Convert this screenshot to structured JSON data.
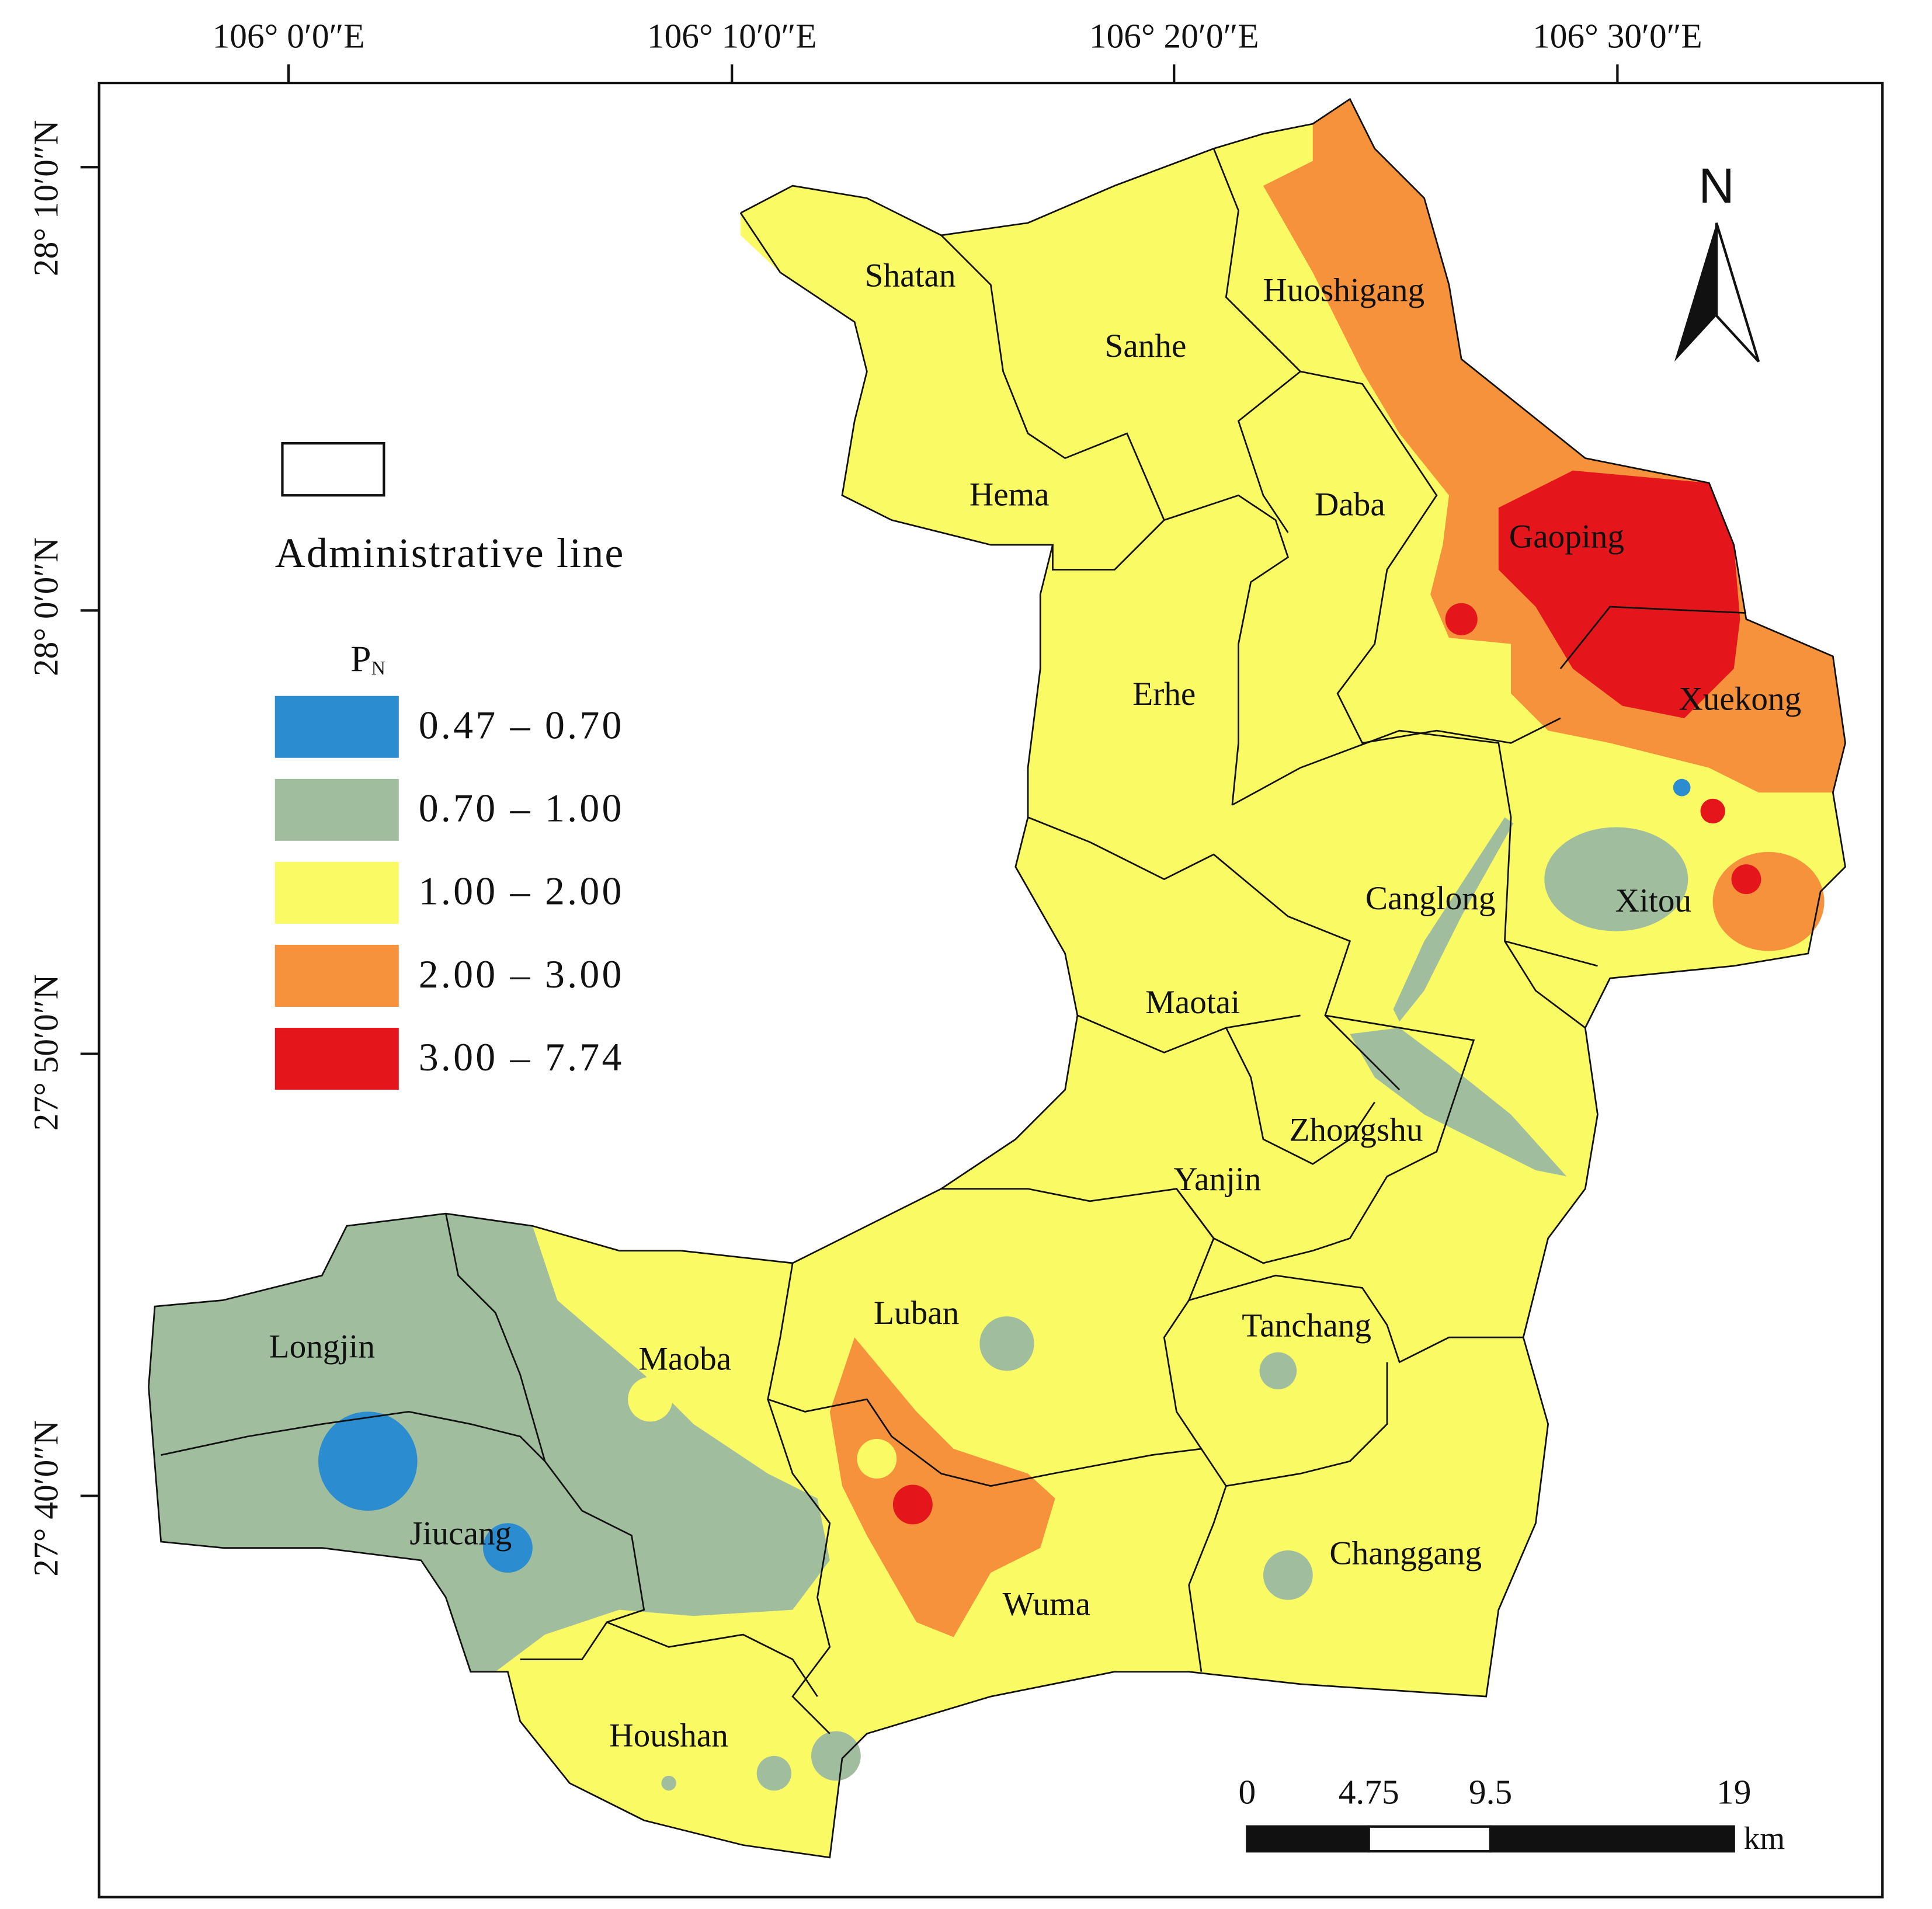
{
  "map": {
    "longitude_labels": [
      "106° 0′0″E",
      "106° 10′0″E",
      "106° 20′0″E",
      "106° 30′0″E"
    ],
    "latitude_labels": [
      "28° 10′0″N",
      "28° 0′0″N",
      "27° 50′0″N",
      "27° 40′0″N"
    ],
    "north_arrow": "N",
    "towns": [
      "Shatan",
      "Sanhe",
      "Huoshigang",
      "Hema",
      "Daba",
      "Gaoping",
      "Erhe",
      "Xuekong",
      "Canglong",
      "Xitou",
      "Maotai",
      "Zhongshu",
      "Yanjin",
      "Luban",
      "Tanchang",
      "Longjin",
      "Maoba",
      "Jiucang",
      "Changgang",
      "Wuma",
      "Houshan"
    ],
    "legend": {
      "boundary_label": "Administrative line",
      "title": "P",
      "title_subscript": "N",
      "classes": [
        {
          "label": "0.47 – 0.70",
          "color": "#2b8cd0"
        },
        {
          "label": "0.70 – 1.00",
          "color": "#a0be9e"
        },
        {
          "label": "1.00 – 2.00",
          "color": "#fafa64"
        },
        {
          "label": "2.00 – 3.00",
          "color": "#f6913c"
        },
        {
          "label": "3.00 – 7.74",
          "color": "#e5161b"
        }
      ]
    },
    "scale_bar": {
      "ticks": [
        0,
        4.75,
        9.5,
        19
      ],
      "unit": "km"
    }
  }
}
